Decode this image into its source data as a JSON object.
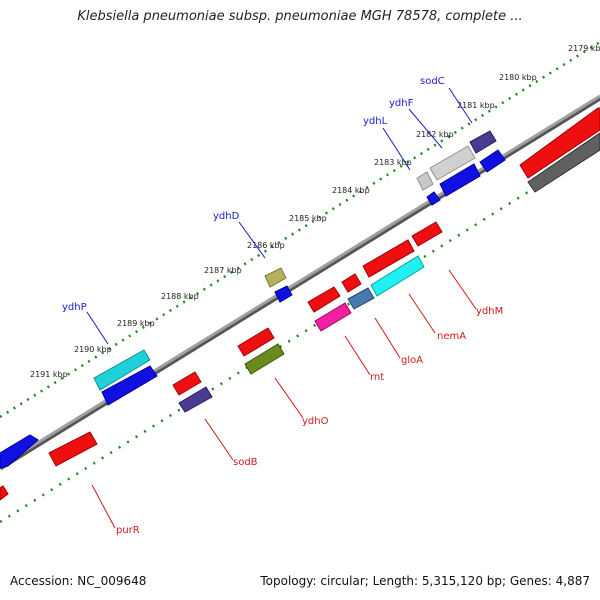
{
  "title": "Klebsiella pneumoniae subsp. pneumoniae MGH 78578, complete ...",
  "footer": {
    "accession": "Accession: NC_009648",
    "summary": "Topology: circular; Length: 5,315,120 bp; Genes: 4,887"
  },
  "colors": {
    "forward_label": "#1a1acc",
    "reverse_label": "#cc1a1a",
    "backbone": "#808080",
    "tick": "#1e8a1e"
  },
  "ticks": [
    {
      "label": "2179 kbp",
      "kbp": 2179
    },
    {
      "label": "2180 kbp",
      "kbp": 2180
    },
    {
      "label": "2181 kbp",
      "kbp": 2181
    },
    {
      "label": "2182 kbp",
      "kbp": 2182
    },
    {
      "label": "2183 kbp",
      "kbp": 2183
    },
    {
      "label": "2184 kbp",
      "kbp": 2184
    },
    {
      "label": "2185 kbp",
      "kbp": 2185
    },
    {
      "label": "2186 kbp",
      "kbp": 2186
    },
    {
      "label": "2187 kbp",
      "kbp": 2187
    },
    {
      "label": "2188 kbp",
      "kbp": 2188
    },
    {
      "label": "2189 kbp",
      "kbp": 2189
    },
    {
      "label": "2190 kbp",
      "kbp": 2190
    },
    {
      "label": "2191 kbp",
      "kbp": 2191
    }
  ],
  "gene_labels": [
    {
      "name": "sodC",
      "strand": "forward"
    },
    {
      "name": "ydhF",
      "strand": "forward"
    },
    {
      "name": "ydhL",
      "strand": "forward"
    },
    {
      "name": "ydhD",
      "strand": "forward"
    },
    {
      "name": "ydhP",
      "strand": "forward"
    },
    {
      "name": "ydhM",
      "strand": "reverse"
    },
    {
      "name": "nemA",
      "strand": "reverse"
    },
    {
      "name": "gloA",
      "strand": "reverse"
    },
    {
      "name": "rnt",
      "strand": "reverse"
    },
    {
      "name": "ydhO",
      "strand": "reverse"
    },
    {
      "name": "sodB",
      "strand": "reverse"
    },
    {
      "name": "purR",
      "strand": "reverse"
    }
  ]
}
